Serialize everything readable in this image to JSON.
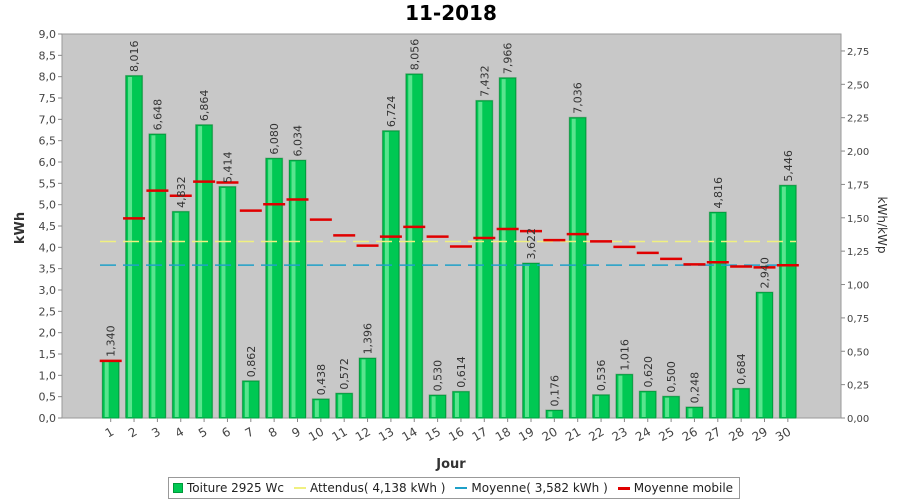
{
  "chart_data": {
    "type": "bar",
    "title": "11-2018",
    "xlabel": "Jour",
    "ylabel": "kWh",
    "y2label": "kWh/kWp",
    "ylim": [
      0,
      9
    ],
    "yticks": [
      "0,0",
      "0,5",
      "1,0",
      "1,5",
      "2,0",
      "2,5",
      "3,0",
      "3,5",
      "4,0",
      "4,5",
      "5,0",
      "5,5",
      "6,0",
      "6,5",
      "7,0",
      "7,5",
      "8,0",
      "8,5",
      "9,0"
    ],
    "y2ticks": [
      "0,00",
      "0,25",
      "0,50",
      "0,75",
      "1,00",
      "1,25",
      "1,50",
      "1,75",
      "2,00",
      "2,25",
      "2,50",
      "2,75"
    ],
    "y2lim": [
      0,
      2.877
    ],
    "grid": true,
    "legend_position": "bottom",
    "categories": [
      "1",
      "2",
      "3",
      "4",
      "5",
      "6",
      "7",
      "8",
      "9",
      "10",
      "11",
      "12",
      "13",
      "14",
      "15",
      "16",
      "17",
      "18",
      "19",
      "20",
      "21",
      "22",
      "23",
      "24",
      "25",
      "26",
      "27",
      "28",
      "29",
      "30"
    ],
    "series": [
      {
        "name": "Toiture 2925 Wc",
        "kind": "bar",
        "color": "#00c853",
        "values": [
          1.34,
          8.016,
          6.648,
          4.832,
          6.864,
          5.414,
          0.862,
          6.08,
          6.034,
          0.438,
          0.572,
          1.396,
          6.724,
          8.056,
          0.53,
          0.614,
          7.432,
          7.966,
          3.622,
          0.176,
          7.036,
          0.536,
          1.016,
          0.62,
          0.5,
          0.248,
          4.816,
          0.684,
          2.94,
          5.446
        ],
        "labels": [
          "1,340",
          "8,016",
          "6,648",
          "4,832",
          "6,864",
          "5,414",
          "0,862",
          "6,080",
          "6,034",
          "0,438",
          "0,572",
          "1,396",
          "6,724",
          "8,056",
          "0,530",
          "0,614",
          "7,432",
          "7,966",
          "3,622",
          "0,176",
          "7,036",
          "0,536",
          "1,016",
          "0,620",
          "0,500",
          "0,248",
          "4,816",
          "0,684",
          "2,940",
          "5,446"
        ]
      },
      {
        "name": "Attendus( 4,138 kWh )",
        "kind": "hline",
        "color": "#f0f080",
        "value": 4.138
      },
      {
        "name": "Moyenne( 3,582 kWh )",
        "kind": "hline",
        "color": "#1fa0c8",
        "value": 3.582
      },
      {
        "name": "Moyenne mobile",
        "kind": "step",
        "color": "#e00000",
        "values": [
          1.34,
          4.68,
          5.33,
          5.21,
          5.54,
          5.52,
          4.86,
          5.01,
          5.12,
          4.65,
          4.28,
          4.04,
          4.25,
          4.48,
          4.25,
          4.02,
          4.22,
          4.43,
          4.38,
          4.17,
          4.31,
          4.14,
          4.01,
          3.87,
          3.73,
          3.6,
          3.65,
          3.55,
          3.53,
          3.58
        ]
      }
    ]
  }
}
